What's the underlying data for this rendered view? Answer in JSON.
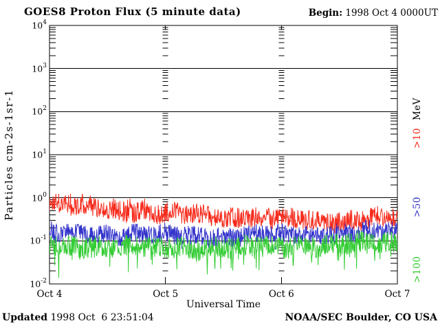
{
  "header": {
    "title": "GOES8 Proton Flux (5 minute data)",
    "begin_label": "Begin:",
    "begin_value": " 1998 Oct 4 0000UT"
  },
  "footer": {
    "updated_label": "Updated",
    "updated_value": " 1998 Oct  6 23:51:04",
    "credit": "NOAA/SEC Boulder, CO USA"
  },
  "legend": {
    "unit": "MeV",
    "items": [
      {
        "label": ">10",
        "color": "#f62b1c"
      },
      {
        "label": ">50",
        "color": "#3333cc"
      },
      {
        "label": ">100",
        "color": "#33cc33"
      }
    ]
  },
  "chart_data": {
    "type": "line",
    "title": "GOES8 Proton Flux (5 minute data)",
    "xlabel": "Universal Time",
    "ylabel": "Particles cm-2s-1sr-1",
    "y_scale": "log10",
    "ylim": [
      0.01,
      10000
    ],
    "y_tick_base": "10",
    "y_tick_exponents": [
      "4",
      "3",
      "2",
      "1",
      "0",
      "-1",
      "-2"
    ],
    "x_tick_labels": [
      "Oct 4",
      "Oct 5",
      "Oct 6",
      "Oct 7"
    ],
    "x_range_days": [
      0,
      3
    ],
    "cadence_minutes": 5,
    "grid": {
      "horizontal_decade_lines": true,
      "vertical_day_tick_columns": true
    },
    "legend_position": "right-rotated",
    "series": [
      {
        "name": ">10 MeV",
        "color": "#f62b1c",
        "trend_log10": [
          [
            0,
            -0.16
          ],
          [
            0.35,
            -0.22
          ],
          [
            0.7,
            -0.3
          ],
          [
            1.0,
            -0.36
          ],
          [
            1.5,
            -0.44
          ],
          [
            2.0,
            -0.5
          ],
          [
            2.6,
            -0.52
          ],
          [
            3.0,
            -0.46
          ]
        ],
        "noise_log10": 0.24,
        "max_log10_value": 0.09,
        "spikes": {
          "direction": 1,
          "probability": 0.12,
          "max_log10": 0.27,
          "fade_by_day": 1.25
        }
      },
      {
        "name": ">50 MeV",
        "color": "#3333cc",
        "trend_log10": [
          [
            0,
            -0.82
          ],
          [
            0.5,
            -0.85
          ],
          [
            1.0,
            -0.86
          ],
          [
            1.5,
            -0.88
          ],
          [
            2.0,
            -0.85
          ],
          [
            2.5,
            -0.82
          ],
          [
            3.0,
            -0.78
          ]
        ],
        "noise_log10": 0.22,
        "spikes": {
          "direction": -1,
          "probability": 0.05,
          "max_log10": 0.22
        }
      },
      {
        "name": ">100 MeV",
        "color": "#33cc33",
        "trend_log10": [
          [
            0,
            -1.12
          ],
          [
            0.5,
            -1.15
          ],
          [
            1.0,
            -1.15
          ],
          [
            1.5,
            -1.16
          ],
          [
            2.0,
            -1.12
          ],
          [
            2.5,
            -1.08
          ],
          [
            3.0,
            -1.05
          ]
        ],
        "noise_log10": 0.25,
        "spikes": {
          "direction": -1,
          "probability": 0.09,
          "max_log10": 0.5
        }
      }
    ]
  }
}
